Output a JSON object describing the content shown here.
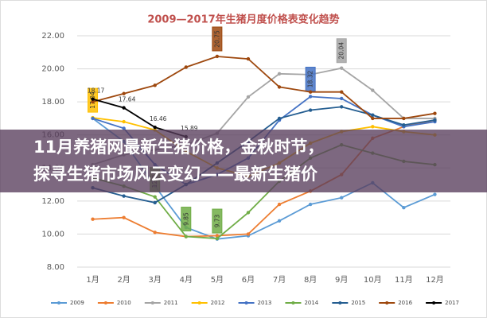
{
  "banner": {
    "lines": [
      "11月养猪网最新生猪价格，金秋时节，",
      "探寻生猪市场风云变幻——最新生猪价"
    ]
  },
  "chart_data": {
    "type": "line",
    "title": "2009—2017年生猪月度价格表变化趋势",
    "categories": [
      "1月",
      "2月",
      "3月",
      "4月",
      "5月",
      "6月",
      "7月",
      "8月",
      "9月",
      "10月",
      "11月",
      "12月"
    ],
    "ylim": [
      8,
      22
    ],
    "yticks": [
      {
        "value": 8,
        "label": "8.00"
      },
      {
        "value": 10,
        "label": "10.00"
      },
      {
        "value": 12,
        "label": "12.00"
      },
      {
        "value": 14,
        "label": "14.00"
      },
      {
        "value": 16,
        "label": "16.00"
      },
      {
        "value": 18,
        "label": "18.00"
      },
      {
        "value": 20,
        "label": "20.00"
      },
      {
        "value": 22,
        "label": "22.00"
      }
    ],
    "grid": true,
    "legend": "bottom",
    "series": [
      {
        "name": "2009",
        "color": "#5b9bd5",
        "values": [
          17.0,
          15.6,
          12.9,
          10.4,
          9.7,
          9.9,
          10.8,
          11.8,
          12.2,
          13.1,
          11.6,
          12.4
        ],
        "value_labels": [
          null,
          null,
          null,
          null,
          null,
          null,
          null,
          null,
          null,
          null,
          null,
          null
        ],
        "label_style": "box-vertical"
      },
      {
        "name": "2010",
        "color": "#ed7d31",
        "values": [
          10.9,
          11.0,
          10.1,
          9.85,
          9.9,
          10.0,
          11.8,
          12.6,
          13.6,
          15.8,
          16.5,
          16.9
        ],
        "value_labels": [
          null,
          null,
          null,
          null,
          null,
          null,
          null,
          null,
          null,
          null,
          null,
          null
        ],
        "label_style": "box-vertical"
      },
      {
        "name": "2011",
        "color": "#a5a5a5",
        "values": [
          14.2,
          14.8,
          15.1,
          15.4,
          16.1,
          18.3,
          19.7,
          19.65,
          20.04,
          18.7,
          17.0,
          17.0
        ],
        "value_labels": [
          null,
          null,
          null,
          null,
          null,
          null,
          null,
          null,
          "20.04",
          null,
          null,
          null
        ],
        "label_style": "box-vertical"
      },
      {
        "name": "2012",
        "color": "#ffc000",
        "values": [
          17.04,
          16.8,
          16.3,
          15.0,
          14.0,
          13.5,
          14.3,
          15.5,
          16.2,
          16.5,
          16.2,
          16.0
        ],
        "value_labels": [
          "17.04",
          null,
          null,
          null,
          null,
          null,
          null,
          null,
          null,
          null,
          null,
          null
        ],
        "label_style": "box-vertical"
      },
      {
        "name": "2013",
        "color": "#4472c4",
        "values": [
          17.0,
          16.4,
          14.2,
          13.0,
          13.6,
          14.6,
          16.9,
          18.32,
          18.2,
          17.2,
          16.5,
          16.8
        ],
        "value_labels": [
          null,
          null,
          null,
          null,
          null,
          null,
          null,
          "18.32",
          null,
          null,
          null,
          null
        ],
        "label_style": "box-vertical"
      },
      {
        "name": "2014",
        "color": "#70ad47",
        "values": [
          13.4,
          12.9,
          12.25,
          9.85,
          9.73,
          11.3,
          13.2,
          14.6,
          15.4,
          14.9,
          14.4,
          14.2
        ],
        "value_labels": [
          null,
          null,
          "12.25",
          "9.85",
          "9.73",
          null,
          null,
          null,
          null,
          null,
          null,
          null
        ],
        "label_style": "box-vertical"
      },
      {
        "name": "2015",
        "color": "#255e91",
        "values": [
          12.8,
          12.3,
          11.9,
          13.0,
          14.3,
          15.6,
          17.0,
          17.5,
          17.7,
          17.2,
          16.6,
          16.9
        ],
        "value_labels": [
          null,
          null,
          null,
          null,
          null,
          null,
          null,
          null,
          null,
          null,
          null,
          null
        ],
        "label_style": "box-vertical"
      },
      {
        "name": "2016",
        "color": "#9e480e",
        "values": [
          18.0,
          18.5,
          19.0,
          20.1,
          20.75,
          20.6,
          18.9,
          18.6,
          18.6,
          17.0,
          17.0,
          17.3
        ],
        "value_labels": [
          null,
          null,
          null,
          null,
          "20.75",
          null,
          null,
          null,
          null,
          null,
          null,
          null
        ],
        "label_style": "box-vertical"
      },
      {
        "name": "2017",
        "color": "#000000",
        "values": [
          18.17,
          17.64,
          16.46,
          15.89,
          null,
          null,
          null,
          null,
          null,
          null,
          null,
          null
        ],
        "value_labels": [
          "18.17",
          "17.64",
          "16.46",
          "15.89",
          null,
          null,
          null,
          null,
          null,
          null,
          null,
          null
        ],
        "label_style": "plain"
      }
    ]
  }
}
